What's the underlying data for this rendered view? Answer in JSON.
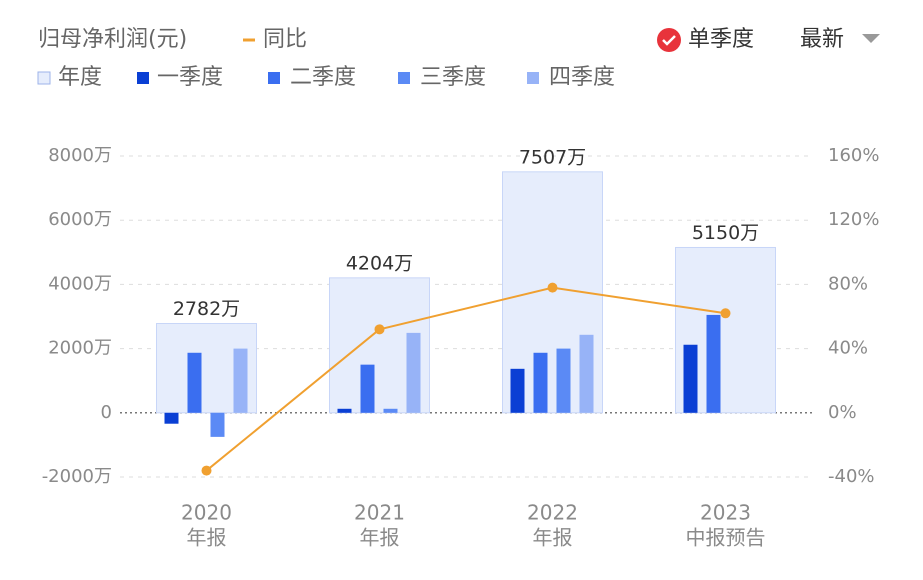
{
  "chart_data": {
    "type": "bar",
    "title": "归母净利润(元)",
    "categories": [
      "2020",
      "2021",
      "2022",
      "2023"
    ],
    "category_sublabels": [
      "年报",
      "年报",
      "年报",
      "中报预告"
    ],
    "series": [
      {
        "name": "年度",
        "color": "#e6edfc",
        "values": [
          2782,
          4204,
          7507,
          5150
        ],
        "value_labels": [
          "2782万",
          "4204万",
          "7507万",
          "5150万"
        ]
      },
      {
        "name": "一季度",
        "color": "#0a3fd4",
        "values": [
          -340,
          125,
          1370,
          2120
        ]
      },
      {
        "name": "二季度",
        "color": "#3a6ef0",
        "values": [
          1870,
          1500,
          1870,
          3050
        ]
      },
      {
        "name": "三季度",
        "color": "#5b8af5",
        "values": [
          -750,
          125,
          2000,
          null
        ]
      },
      {
        "name": "四季度",
        "color": "#97b3f7",
        "values": [
          2000,
          2490,
          2430,
          null
        ]
      },
      {
        "name": "同比",
        "type": "line",
        "axis": "y2",
        "color": "#f0a030",
        "values": [
          -36,
          52,
          78,
          62
        ]
      }
    ],
    "ylim": [
      -2000,
      8000
    ],
    "yticks": [
      {
        "value": -2000,
        "label": "-2000万"
      },
      0,
      {
        "value": 2000,
        "label": "2000万"
      },
      {
        "value": 4000,
        "label": "4000万"
      },
      {
        "value": 6000,
        "label": "6000万"
      },
      {
        "value": 8000,
        "label": "8000万"
      }
    ],
    "y2lim": [
      -40,
      160
    ],
    "y2ticks": [
      {
        "value": -40,
        "label": "-40%"
      },
      {
        "value": 0,
        "label": "0%"
      },
      {
        "value": 40,
        "label": "40%"
      },
      {
        "value": 80,
        "label": "80%"
      },
      {
        "value": 120,
        "label": "120%"
      },
      {
        "value": 160,
        "label": "160%"
      }
    ],
    "grid": true
  },
  "controls": {
    "toggle_label": "单季度",
    "sort_label": "最新"
  }
}
